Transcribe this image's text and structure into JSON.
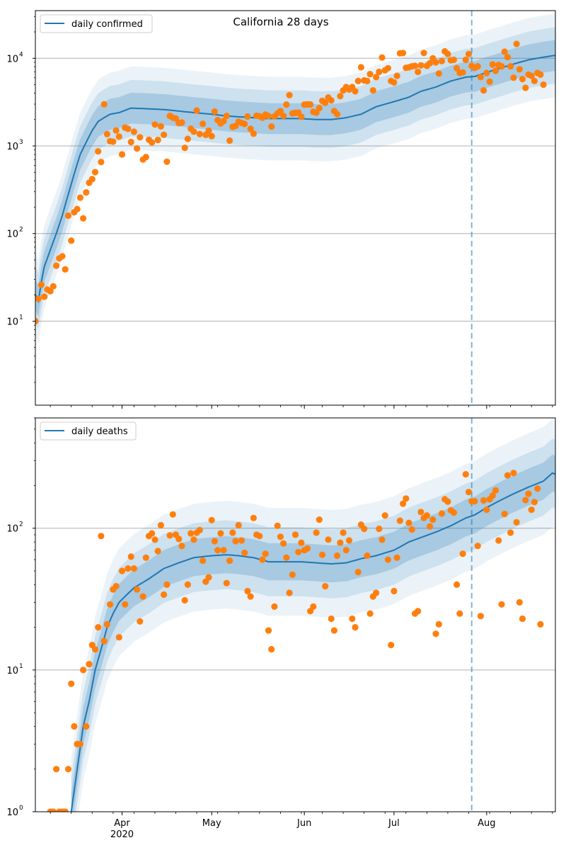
{
  "figure": {
    "title": "California 28 days"
  },
  "x_axis": {
    "tick_labels": [
      "Apr",
      "May",
      "Jun",
      "Jul",
      "Aug"
    ],
    "tick_dates": [
      "2020-04-01",
      "2020-05-01",
      "2020-06-01",
      "2020-07-01",
      "2020-08-01"
    ],
    "year_label": "2020",
    "range": [
      "2020-03-03",
      "2020-08-24"
    ],
    "forecast_start": "2020-07-27"
  },
  "colors": {
    "line": "#1f77b4",
    "points": "#ff7f0e",
    "band": "#1f77b4",
    "grid": "#b0b0b0"
  },
  "chart_data": [
    {
      "type": "line",
      "legend": "daily confirmed",
      "legend_position": "upper-left",
      "yscale": "log",
      "ylim": [
        1.1,
        35000
      ],
      "y_ticks": [
        10,
        100,
        1000,
        10000
      ],
      "y_tick_labels": [
        "10",
        "10",
        "10",
        "10"
      ],
      "y_tick_exponents": [
        "1",
        "2",
        "3",
        "4"
      ],
      "grid": true,
      "x_range": [
        "2020-03-03",
        "2020-08-24"
      ],
      "median_anchors": [
        [
          "2020-03-03",
          20
        ],
        [
          "2020-03-04",
          17
        ],
        [
          "2020-03-05",
          28
        ],
        [
          "2020-03-06",
          42
        ],
        [
          "2020-03-08",
          65
        ],
        [
          "2020-03-10",
          100
        ],
        [
          "2020-03-12",
          160
        ],
        [
          "2020-03-14",
          280
        ],
        [
          "2020-03-16",
          480
        ],
        [
          "2020-03-18",
          800
        ],
        [
          "2020-03-20",
          1100
        ],
        [
          "2020-03-22",
          1500
        ],
        [
          "2020-03-24",
          1900
        ],
        [
          "2020-03-26",
          2100
        ],
        [
          "2020-03-28",
          2300
        ],
        [
          "2020-03-31",
          2400
        ],
        [
          "2020-04-04",
          2700
        ],
        [
          "2020-04-10",
          2650
        ],
        [
          "2020-04-15",
          2600
        ],
        [
          "2020-04-20",
          2500
        ],
        [
          "2020-04-25",
          2400
        ],
        [
          "2020-05-01",
          2300
        ],
        [
          "2020-05-06",
          2200
        ],
        [
          "2020-05-10",
          2150
        ],
        [
          "2020-05-15",
          2100
        ],
        [
          "2020-05-20",
          2050
        ],
        [
          "2020-05-25",
          2050
        ],
        [
          "2020-05-31",
          2050
        ],
        [
          "2020-06-05",
          2000
        ],
        [
          "2020-06-10",
          2000
        ],
        [
          "2020-06-15",
          2100
        ],
        [
          "2020-06-20",
          2300
        ],
        [
          "2020-06-25",
          2800
        ],
        [
          "2020-07-01",
          3200
        ],
        [
          "2020-07-06",
          3600
        ],
        [
          "2020-07-10",
          4200
        ],
        [
          "2020-07-15",
          4700
        ],
        [
          "2020-07-20",
          5500
        ],
        [
          "2020-07-25",
          6100
        ],
        [
          "2020-07-28",
          6200
        ],
        [
          "2020-08-01",
          6900
        ],
        [
          "2020-08-05",
          7600
        ],
        [
          "2020-08-10",
          8600
        ],
        [
          "2020-08-15",
          9600
        ],
        [
          "2020-08-20",
          10300
        ],
        [
          "2020-08-24",
          10800
        ]
      ],
      "band_factors": [
        1.5,
        2.1,
        3.0
      ],
      "band_opacities": [
        0.22,
        0.14,
        0.09
      ],
      "observed": [
        10,
        18,
        26,
        19,
        23,
        22,
        25,
        43,
        52,
        55,
        39,
        160,
        83,
        175,
        190,
        257,
        149,
        295,
        380,
        418,
        502,
        867,
        655,
        2990,
        1361,
        1131,
        1119,
        1501,
        1278,
        800,
        1621,
        1566,
        1107,
        1450,
        936,
        1255,
        700,
        747,
        1175,
        1096,
        1756,
        1170,
        1673,
        1340,
        660,
        2200,
        2100,
        2050,
        1823,
        1850,
        951,
        1203,
        1571,
        1455,
        2531,
        1365,
        1785,
        1337,
        1493,
        1294,
        2466,
        1970,
        1807,
        1920,
        2200,
        1151,
        1650,
        1686,
        1887,
        1833,
        1781,
        2164,
        1567,
        1381,
        2210,
        2181,
        2100,
        2280,
        2190,
        1661,
        2174,
        2350,
        2500,
        2200,
        2967,
        3800,
        2350,
        2380,
        2400,
        2149,
        2960,
        2977,
        2970,
        2450,
        2400,
        2700,
        3270,
        3100,
        3570,
        3300,
        2500,
        2300,
        3700,
        4300,
        4700,
        4400,
        4700,
        4200,
        5500,
        7900,
        5600,
        5500,
        6600,
        4300,
        6100,
        7000,
        10200,
        7300,
        7700,
        5500,
        5300,
        6300,
        11400,
        11500,
        7800,
        7900,
        8100,
        8200,
        7000,
        8300,
        11500,
        8200,
        8800,
        10000,
        9000,
        6700,
        9300,
        12000,
        11200,
        9500,
        9600,
        7700,
        6800,
        6900,
        9600,
        11200,
        8200,
        7800,
        8100,
        6100,
        4300,
        6800,
        5400,
        8500,
        7200,
        8400,
        8100,
        11900,
        10300,
        8100,
        6000,
        14600,
        7500,
        5800,
        4600,
        6500,
        6300,
        5500,
        6800,
        6500,
        5000
      ]
    },
    {
      "type": "line",
      "legend": "daily deaths",
      "legend_position": "upper-left",
      "yscale": "log",
      "ylim": [
        1,
        600
      ],
      "y_ticks": [
        1,
        10,
        100
      ],
      "y_tick_labels": [
        "10",
        "10",
        "10"
      ],
      "y_tick_exponents": [
        "0",
        "1",
        "2"
      ],
      "grid": true,
      "x_range": [
        "2020-03-03",
        "2020-08-24"
      ],
      "median_anchors": [
        [
          "2020-03-15",
          1
        ],
        [
          "2020-03-17",
          2
        ],
        [
          "2020-03-19",
          4
        ],
        [
          "2020-03-21",
          6
        ],
        [
          "2020-03-23",
          10
        ],
        [
          "2020-03-25",
          14
        ],
        [
          "2020-03-27",
          20
        ],
        [
          "2020-03-29",
          25
        ],
        [
          "2020-03-31",
          30
        ],
        [
          "2020-04-02",
          33
        ],
        [
          "2020-04-05",
          38
        ],
        [
          "2020-04-10",
          44
        ],
        [
          "2020-04-15",
          52
        ],
        [
          "2020-04-20",
          57
        ],
        [
          "2020-04-25",
          62
        ],
        [
          "2020-05-01",
          64
        ],
        [
          "2020-05-06",
          65
        ],
        [
          "2020-05-10",
          64
        ],
        [
          "2020-05-15",
          62
        ],
        [
          "2020-05-20",
          58
        ],
        [
          "2020-05-25",
          58
        ],
        [
          "2020-05-31",
          58
        ],
        [
          "2020-06-05",
          57
        ],
        [
          "2020-06-10",
          56
        ],
        [
          "2020-06-15",
          57
        ],
        [
          "2020-06-20",
          61
        ],
        [
          "2020-06-25",
          64
        ],
        [
          "2020-07-01",
          70
        ],
        [
          "2020-07-06",
          80
        ],
        [
          "2020-07-10",
          86
        ],
        [
          "2020-07-15",
          94
        ],
        [
          "2020-07-20",
          104
        ],
        [
          "2020-07-25",
          118
        ],
        [
          "2020-07-28",
          124
        ],
        [
          "2020-08-01",
          140
        ],
        [
          "2020-08-05",
          155
        ],
        [
          "2020-08-10",
          175
        ],
        [
          "2020-08-15",
          195
        ],
        [
          "2020-08-20",
          215
        ],
        [
          "2020-08-23",
          245
        ],
        [
          "2020-08-24",
          240
        ]
      ],
      "band_factors": [
        1.35,
        1.75,
        2.4
      ],
      "band_opacities": [
        0.22,
        0.14,
        0.09
      ],
      "observed": [
        null,
        null,
        null,
        null,
        null,
        1,
        1,
        2,
        1,
        1,
        1,
        2,
        8,
        4,
        3,
        3,
        10,
        4,
        11,
        15,
        14,
        20,
        88,
        16,
        21,
        29,
        37,
        39,
        17,
        50,
        29,
        52,
        63,
        52,
        37,
        22,
        33,
        62,
        88,
        92,
        83,
        69,
        105,
        34,
        40,
        89,
        125,
        90,
        84,
        75,
        31,
        40,
        92,
        83,
        93,
        97,
        59,
        42,
        45,
        114,
        81,
        70,
        92,
        70,
        41,
        59,
        93,
        81,
        105,
        82,
        67,
        36,
        33,
        118,
        90,
        88,
        60,
        66,
        19,
        14,
        28,
        104,
        87,
        78,
        62,
        35,
        47,
        90,
        68,
        79,
        70,
        72,
        26,
        28,
        93,
        115,
        65,
        39,
        83,
        23,
        19,
        64,
        79,
        93,
        70,
        82,
        23,
        20,
        49,
        106,
        99,
        64,
        25,
        33,
        35,
        99,
        83,
        123,
        60,
        15,
        36,
        62,
        113,
        149,
        162,
        109,
        98,
        25,
        26,
        130,
        118,
        123,
        103,
        115,
        18,
        21,
        127,
        160,
        154,
        134,
        129,
        40,
        25,
        66,
        240,
        180,
        155,
        155,
        75,
        24,
        157,
        135,
        160,
        170,
        185,
        82,
        29,
        126,
        236,
        93,
        245,
        110,
        30,
        23,
        158,
        175,
        135,
        153,
        190,
        21
      ]
    }
  ]
}
